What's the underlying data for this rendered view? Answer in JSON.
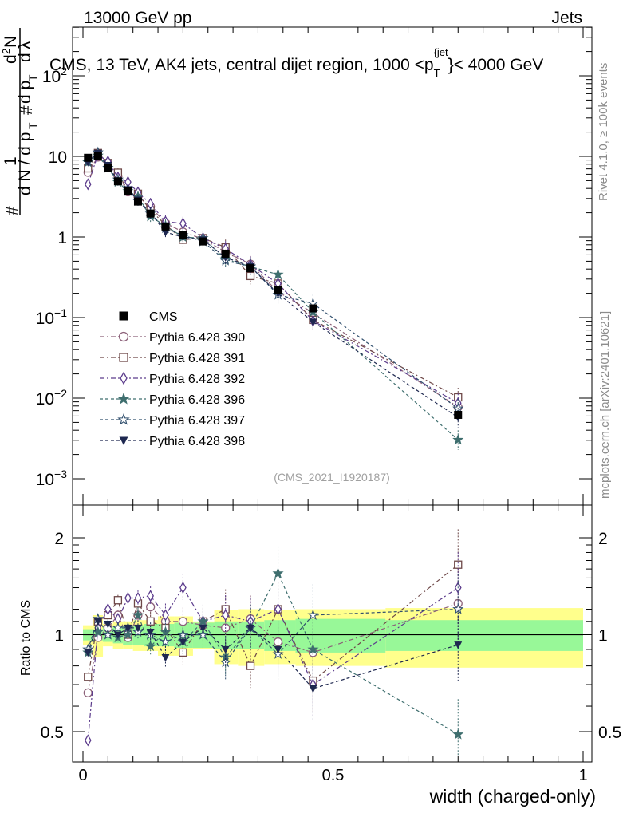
{
  "header": {
    "left": "13000 GeV pp",
    "right": "Jets"
  },
  "side_labels": {
    "rivet": "Rivet 4.1.0, ≥ 100k events",
    "mcplots": "mcplots.cern.ch [arXiv:2401.10621]"
  },
  "chart_data": {
    "type": "line",
    "title": "CMS, 13 TeV, AK4 jets, central dijet region, 1000 <p_T^{jet}< 4000 GeV",
    "title_parts": {
      "pre": "CMS, 13 TeV, AK4 jets, central dijet region, 1000 <p",
      "sub": "T",
      "sup": "{jet",
      "post": "}< 4000 GeV"
    },
    "ylabel_parts": {
      "num": "# d²N / # d p_T dλ",
      "den": "# 1 / d N / d p_T"
    },
    "ylabel_display": [
      "#",
      "d N / d p",
      "T",
      "1",
      "#",
      "d p",
      "T",
      "d",
      "2",
      "N",
      "d",
      "λ"
    ],
    "xlabel": "width (charged-only)",
    "ratio_ylabel": "Ratio to CMS",
    "watermark": "(CMS_2021_I1920187)",
    "xlim": [
      0,
      1
    ],
    "ylim_main": [
      0.001,
      100
    ],
    "ylim_ratio": [
      0.5,
      2
    ],
    "x_ticks": [
      "0",
      "0.5",
      "1"
    ],
    "y_ticks_main": [
      {
        "value": 0.001,
        "base": "10",
        "exp": "−3"
      },
      {
        "value": 0.01,
        "base": "10",
        "exp": "−2"
      },
      {
        "value": 0.1,
        "base": "10",
        "exp": "−1"
      },
      {
        "value": 1,
        "base": "1",
        "exp": ""
      },
      {
        "value": 10,
        "base": "10",
        "exp": ""
      },
      {
        "value": 100,
        "base": "10",
        "exp": "2"
      }
    ],
    "y_ticks_ratio": [
      {
        "value": 0.5,
        "label": "0.5"
      },
      {
        "value": 1,
        "label": "1"
      },
      {
        "value": 2,
        "label": "2"
      }
    ],
    "x": [
      0.01,
      0.03,
      0.05,
      0.07,
      0.09,
      0.11,
      0.135,
      0.165,
      0.2,
      0.24,
      0.285,
      0.335,
      0.39,
      0.46,
      0.75
    ],
    "data": {
      "name": "CMS",
      "values": [
        9.6,
        10.0,
        7.2,
        4.9,
        3.7,
        2.75,
        1.95,
        1.35,
        1.05,
        0.88,
        0.62,
        0.41,
        0.22,
        0.13,
        0.0062
      ],
      "band_inner": [
        0.04,
        0.04,
        0.05,
        0.06,
        0.07,
        0.07,
        0.08,
        0.08,
        0.09,
        0.09,
        0.1,
        0.1,
        0.11,
        0.12,
        0.11
      ],
      "band_outer": [
        0.07,
        0.15,
        0.08,
        0.1,
        0.1,
        0.11,
        0.11,
        0.14,
        0.14,
        0.1,
        0.19,
        0.2,
        0.19,
        0.2,
        0.21
      ]
    },
    "series": [
      {
        "name": "Pythia 6.428 390",
        "color": "#8c6179",
        "marker": "circle-open",
        "dash": "6,3,2,3",
        "ratio": [
          0.66,
          0.98,
          1.05,
          1.15,
          0.98,
          1.15,
          1.22,
          1.1,
          1.1,
          1.07,
          1.05,
          1.12,
          0.95,
          0.88,
          1.25
        ]
      },
      {
        "name": "Pythia 6.428 391",
        "color": "#6e4848",
        "marker": "square-open",
        "dash": "6,3,2,3",
        "ratio": [
          0.74,
          1.1,
          1.15,
          1.28,
          1.0,
          1.25,
          1.1,
          1.05,
          0.88,
          1.1,
          1.2,
          0.8,
          1.2,
          0.72,
          1.65
        ]
      },
      {
        "name": "Pythia 6.428 392",
        "color": "#5c3c8c",
        "marker": "diamond-open",
        "dash": "6,3,2,3",
        "ratio": [
          0.47,
          1.05,
          1.2,
          1.12,
          1.3,
          1.3,
          1.32,
          1.15,
          1.4,
          1.1,
          1.15,
          1.1,
          1.2,
          0.7,
          1.4
        ]
      },
      {
        "name": "Pythia 6.428 396",
        "color": "#3e6e6e",
        "marker": "star-filled",
        "dash": "4,3",
        "ratio": [
          0.88,
          1.02,
          1.0,
          0.98,
          1.0,
          1.15,
          0.92,
          1.02,
          0.95,
          1.1,
          0.85,
          1.05,
          1.55,
          0.9,
          0.49
        ]
      },
      {
        "name": "Pythia 6.428 397",
        "color": "#32506e",
        "marker": "star-open",
        "dash": "4,3",
        "ratio": [
          0.9,
          1.12,
          1.0,
          1.05,
          1.05,
          1.02,
          1.0,
          0.95,
          1.0,
          1.0,
          0.82,
          1.05,
          0.87,
          1.15,
          1.2
        ]
      },
      {
        "name": "Pythia 6.428 398",
        "color": "#1e2850",
        "marker": "triangle-down-filled",
        "dash": "4,3",
        "ratio": [
          0.88,
          1.1,
          1.08,
          1.0,
          1.05,
          1.05,
          1.02,
          0.85,
          0.95,
          1.05,
          0.9,
          1.05,
          0.9,
          0.68,
          0.93
        ]
      }
    ],
    "legend_position": "middle-left"
  }
}
